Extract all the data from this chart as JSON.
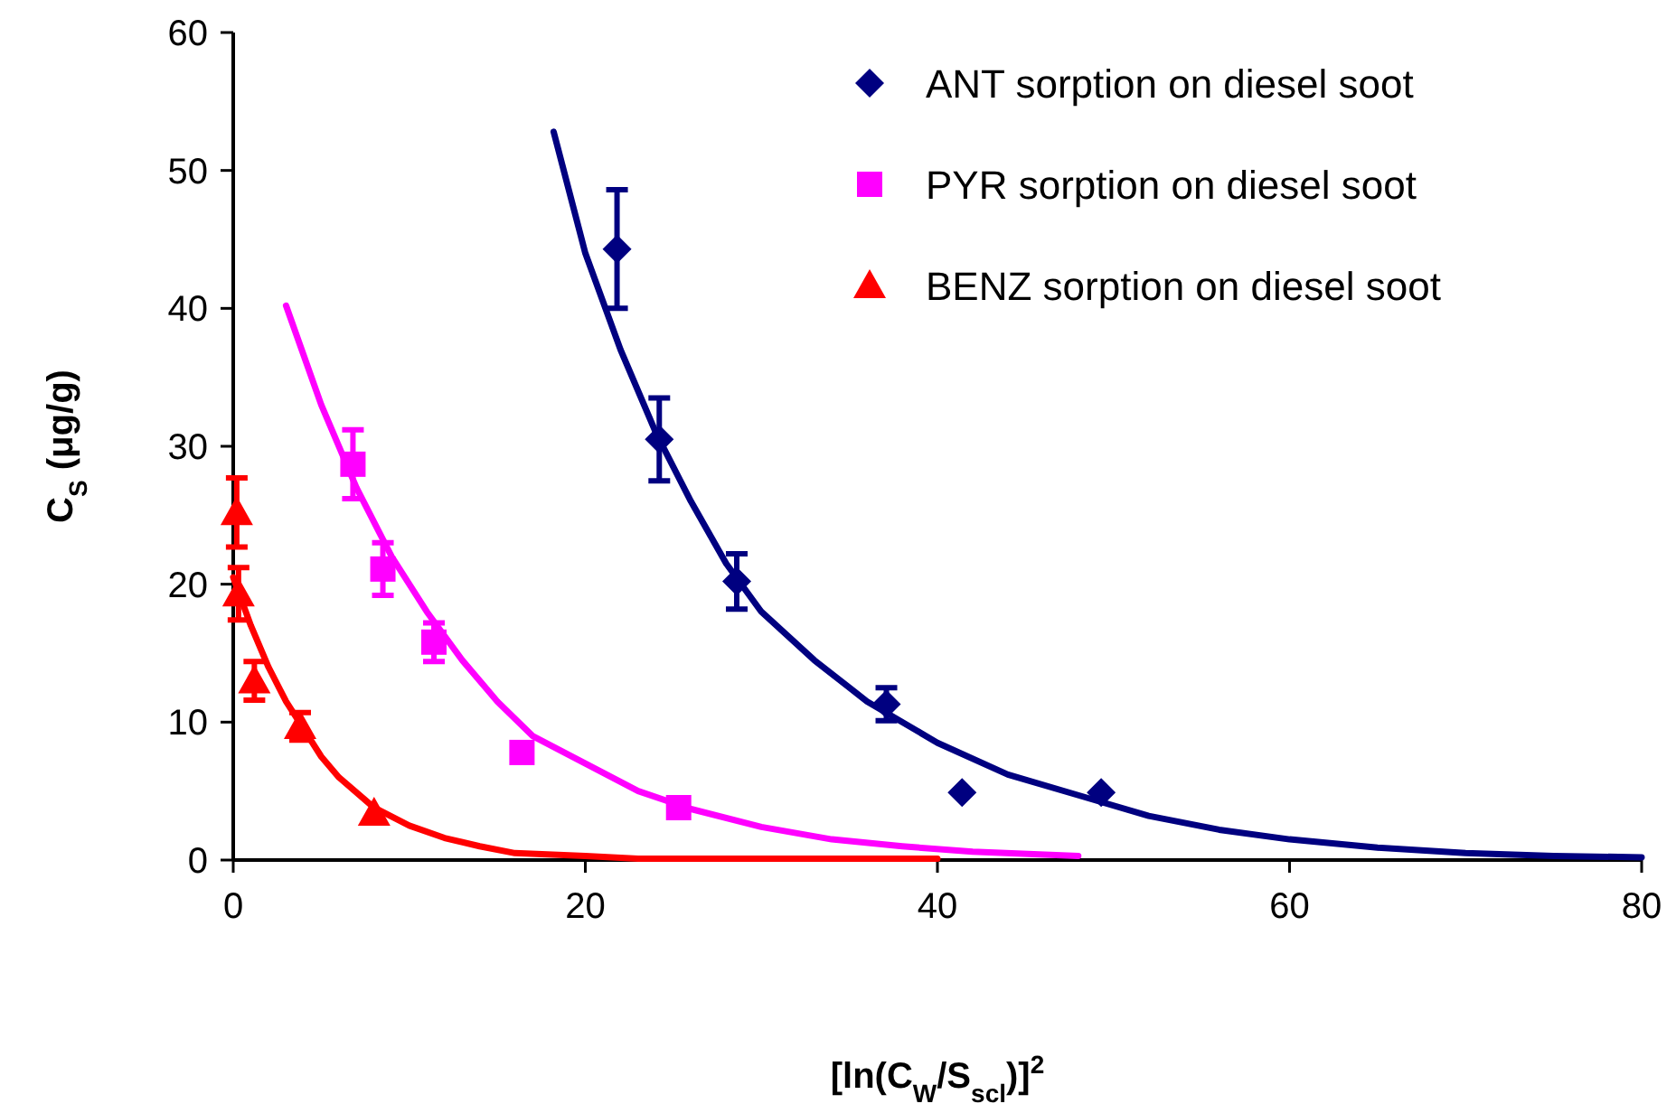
{
  "chart_data": {
    "type": "scatter",
    "xlabel": "[ln(C$_{W}$/S$_{scl}$)]$^{2}$",
    "ylabel": "C$_{S}$ (μg/g)",
    "xlim": [
      0,
      80
    ],
    "xticks": [
      0,
      20,
      40,
      60,
      80
    ],
    "ylim": [
      0,
      60
    ],
    "yticks": [
      0,
      10,
      20,
      30,
      40,
      50,
      60
    ],
    "grid": false,
    "legend": "top right",
    "series": [
      {
        "name": "ANT sorption on diesel soot",
        "color": "#000080",
        "marker": "diamond",
        "x": [
          21.8,
          24.2,
          28.6,
          37.1,
          41.4,
          49.3
        ],
        "values": [
          44.3,
          30.5,
          20.2,
          11.3,
          4.9,
          4.9
        ],
        "errors": [
          4.3,
          3,
          2,
          1.2,
          null,
          null
        ]
      },
      {
        "name": "PYR sorption on diesel soot",
        "color": "#ff00ff",
        "marker": "square",
        "x": [
          6.8,
          8.5,
          11.4,
          16.4,
          25.3
        ],
        "values": [
          28.7,
          21.1,
          15.8,
          7.8,
          3.8
        ],
        "errors": [
          2.5,
          1.9,
          1.4,
          null,
          null
        ]
      },
      {
        "name": "BENZ sorption on diesel soot",
        "color": "#ff0000",
        "marker": "triangle",
        "x": [
          0.2,
          0.3,
          1.2,
          3.8,
          8.0
        ],
        "values": [
          25.2,
          19.3,
          13.0,
          9.7,
          3.4
        ],
        "errors": [
          2.5,
          1.9,
          1.4,
          1,
          null
        ]
      },
      {
        "type": "line",
        "color": "#000080",
        "line_style": "solid",
        "x": [
          18.2,
          20,
          22,
          24,
          26,
          28,
          30,
          33,
          36,
          40,
          44,
          48,
          52,
          56,
          60,
          65,
          70,
          75,
          80
        ],
        "values": [
          52.8,
          44,
          37,
          31,
          26,
          21.5,
          18,
          14.5,
          11.5,
          8.5,
          6.2,
          4.7,
          3.2,
          2.2,
          1.5,
          0.9,
          0.5,
          0.3,
          0.2
        ]
      },
      {
        "type": "line",
        "color": "#ff00ff",
        "line_style": "solid",
        "x": [
          3,
          5,
          7,
          9,
          11,
          13,
          15,
          17,
          20,
          23,
          26,
          30,
          34,
          38,
          42,
          48
        ],
        "values": [
          40.2,
          33,
          27,
          22,
          18,
          14.5,
          11.5,
          9,
          7,
          5,
          3.7,
          2.4,
          1.5,
          1,
          0.6,
          0.3
        ]
      },
      {
        "type": "line",
        "color": "#ff0000",
        "line_style": "solid",
        "x": [
          0,
          1,
          2,
          3,
          4,
          5,
          6,
          8,
          10,
          12,
          14,
          16,
          20,
          23,
          40
        ],
        "values": [
          20.5,
          17,
          14,
          11.5,
          9.5,
          7.5,
          6,
          3.8,
          2.5,
          1.6,
          1,
          0.5,
          0.3,
          0.1,
          0.1
        ]
      }
    ]
  }
}
